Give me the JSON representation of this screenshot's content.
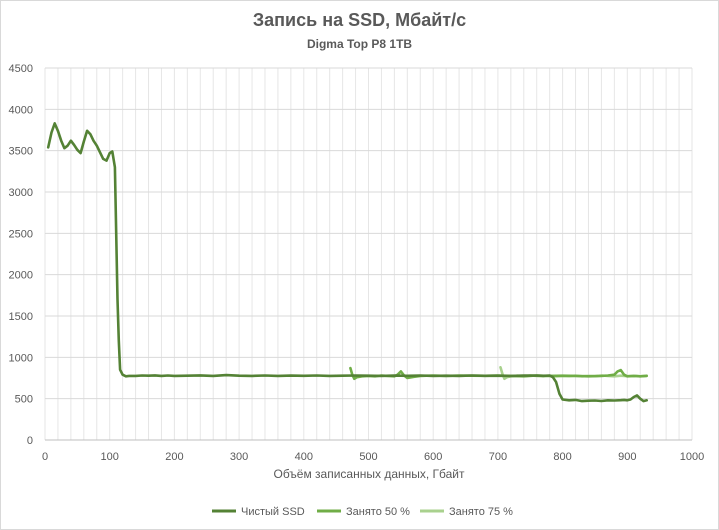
{
  "chart_data": {
    "type": "line",
    "title": "Запись на SSD, Мбайт/с",
    "subtitle": "Digma Top P8 1TB",
    "xlabel": "Объём записанных данных, Гбайт",
    "ylabel": "",
    "xlim": [
      0,
      1000
    ],
    "ylim": [
      0,
      4500
    ],
    "xticks": [
      0,
      100,
      200,
      300,
      400,
      500,
      600,
      700,
      800,
      900,
      1000
    ],
    "yticks": [
      0,
      500,
      1000,
      1500,
      2000,
      2500,
      3000,
      3500,
      4000,
      4500
    ],
    "grid": true,
    "legend_position": "bottom",
    "series": [
      {
        "name": "Чистый SSD",
        "color": "#548235",
        "x": [
          5,
          10,
          15,
          20,
          25,
          30,
          35,
          40,
          45,
          50,
          55,
          60,
          65,
          70,
          75,
          80,
          85,
          90,
          95,
          100,
          104,
          108,
          110,
          112,
          114,
          116,
          120,
          125,
          130,
          140,
          150,
          160,
          170,
          180,
          190,
          200,
          220,
          240,
          260,
          280,
          300,
          320,
          340,
          360,
          380,
          400,
          420,
          440,
          460,
          480,
          500,
          520,
          540,
          560,
          580,
          600,
          620,
          640,
          660,
          680,
          700,
          720,
          740,
          760,
          770,
          780,
          785,
          790,
          795,
          800,
          810,
          820,
          830,
          840,
          850,
          860,
          870,
          880,
          890,
          895,
          900,
          905,
          910,
          915,
          920,
          925,
          930
        ],
        "y": [
          3540,
          3720,
          3830,
          3740,
          3620,
          3530,
          3560,
          3620,
          3570,
          3510,
          3470,
          3610,
          3740,
          3700,
          3620,
          3560,
          3480,
          3400,
          3380,
          3470,
          3490,
          3300,
          2500,
          1700,
          1200,
          850,
          790,
          770,
          775,
          775,
          780,
          778,
          782,
          776,
          780,
          775,
          778,
          782,
          776,
          785,
          778,
          775,
          780,
          776,
          779,
          777,
          780,
          775,
          778,
          780,
          778,
          776,
          779,
          777,
          780,
          775,
          778,
          776,
          780,
          777,
          778,
          776,
          779,
          780,
          777,
          780,
          760,
          700,
          560,
          490,
          480,
          485,
          470,
          475,
          478,
          472,
          480,
          478,
          482,
          485,
          480,
          490,
          520,
          540,
          500,
          470,
          480
        ]
      },
      {
        "name": "Занято 50 %",
        "color": "#70ad47",
        "x": [
          472,
          475,
          478,
          482,
          490,
          500,
          510,
          520,
          530,
          540,
          545,
          550,
          555,
          560,
          570,
          580,
          600,
          620,
          640,
          660,
          680,
          700,
          720,
          740,
          760,
          780,
          800,
          820,
          840,
          860,
          870,
          880,
          885,
          890,
          895,
          900,
          910,
          920,
          930
        ],
        "y": [
          870,
          790,
          740,
          760,
          770,
          775,
          770,
          780,
          775,
          770,
          790,
          830,
          780,
          750,
          765,
          775,
          780,
          776,
          780,
          778,
          777,
          780,
          776,
          770,
          780,
          775,
          778,
          776,
          770,
          775,
          780,
          790,
          830,
          845,
          790,
          770,
          775,
          770,
          775
        ]
      },
      {
        "name": "Занято 75 %",
        "color": "#a9d18e",
        "x": [
          704,
          707,
          710,
          714,
          720,
          730,
          740,
          750,
          760,
          770,
          780,
          790,
          800,
          810,
          820,
          830,
          840,
          850,
          860,
          870,
          880,
          890,
          900,
          910,
          920,
          930
        ],
        "y": [
          880,
          800,
          740,
          760,
          770,
          778,
          772,
          780,
          775,
          770,
          778,
          770,
          775,
          772,
          778,
          770,
          775,
          772,
          780,
          774,
          770,
          778,
          772,
          776,
          770,
          778
        ]
      }
    ]
  }
}
